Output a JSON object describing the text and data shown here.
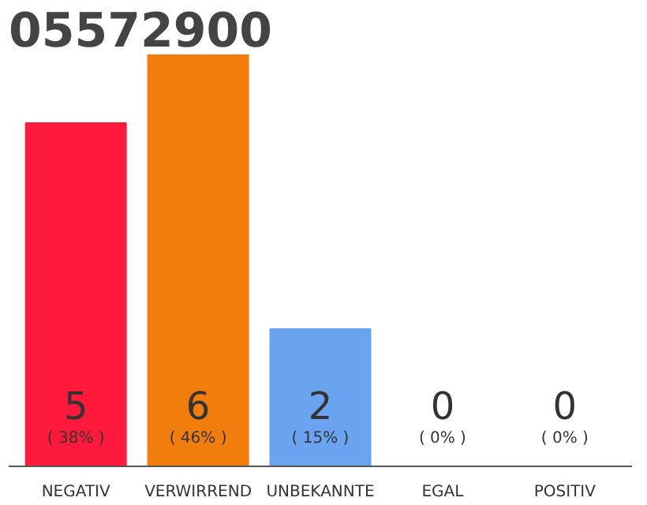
{
  "chart_data": {
    "type": "bar",
    "title": "05572900",
    "categories": [
      "NEGATIV",
      "VERWIRREND",
      "UNBEKANNTE",
      "EGAL",
      "POSITIV"
    ],
    "values": [
      5,
      6,
      2,
      0,
      0
    ],
    "colors": [
      "#ff1a3c",
      "#f07d0c",
      "#6aa3f0",
      "#efefef",
      "#efefef"
    ],
    "data_labels": true,
    "annotations": [
      {
        "text": "( 38% )",
        "x": "NEGATIV",
        "y": 0
      },
      {
        "text": "( 46% )",
        "x": "VERWIRREND",
        "y": 0
      },
      {
        "text": "( 15% )",
        "x": "UNBEKANNTE",
        "y": 0
      },
      {
        "text": "( 0% )",
        "x": "EGAL",
        "y": 0
      },
      {
        "text": "( 0% )",
        "x": "POSITIV",
        "y": 0
      }
    ],
    "grid": false
  }
}
